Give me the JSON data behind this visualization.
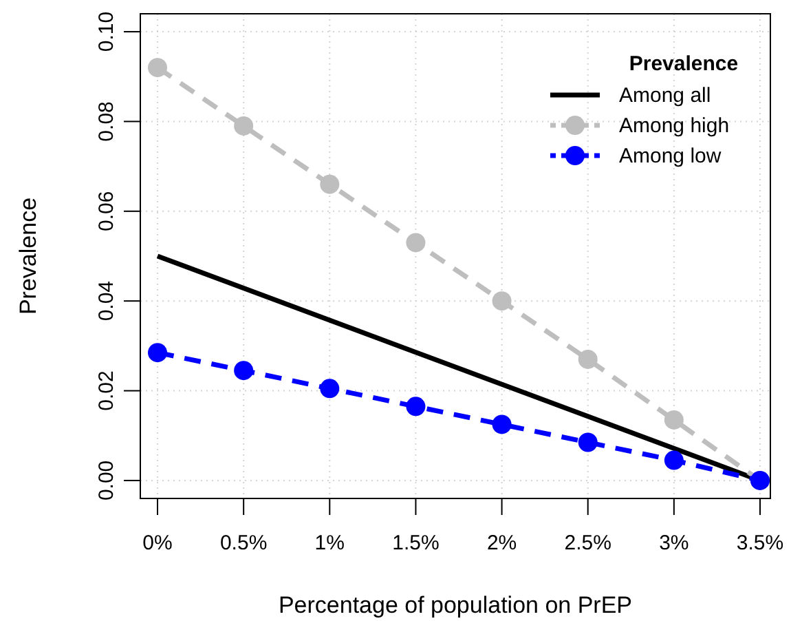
{
  "chart_data": {
    "type": "line",
    "xlabel": "Percentage of population on PrEP",
    "ylabel": "Prevalence",
    "legend_title": "Prevalence",
    "legend": "top right",
    "grid": true,
    "x": [
      0,
      0.5,
      1,
      1.5,
      2,
      2.5,
      3,
      3.5
    ],
    "xlim": [
      -0.1,
      3.56
    ],
    "xticks": [
      {
        "value": 0,
        "label": "0%"
      },
      {
        "value": 0.5,
        "label": "0.5%"
      },
      {
        "value": 1,
        "label": "1%"
      },
      {
        "value": 1.5,
        "label": "1.5%"
      },
      {
        "value": 2,
        "label": "2%"
      },
      {
        "value": 2.5,
        "label": "2.5%"
      },
      {
        "value": 3,
        "label": "3%"
      },
      {
        "value": 3.5,
        "label": "3.5%"
      }
    ],
    "ylim": [
      -0.004,
      0.104
    ],
    "yticks": [
      {
        "value": 0,
        "label": "0.00"
      },
      {
        "value": 0.02,
        "label": "0.02"
      },
      {
        "value": 0.04,
        "label": "0.04"
      },
      {
        "value": 0.06,
        "label": "0.06"
      },
      {
        "value": 0.08,
        "label": "0.08"
      },
      {
        "value": 0.1,
        "label": "0.10"
      }
    ],
    "series": [
      {
        "name": "Among all",
        "color": "#000000",
        "marker": "none",
        "line_style": "solid",
        "x": [
          0,
          3.5
        ],
        "values": [
          0.05,
          0
        ]
      },
      {
        "name": "Among high",
        "color": "#bebebe",
        "marker": "circle",
        "line_style": "dashed",
        "values": [
          0.092,
          0.079,
          0.066,
          0.053,
          0.04,
          0.027,
          0.0135,
          0
        ]
      },
      {
        "name": "Among low",
        "color": "#0000ff",
        "marker": "circle",
        "line_style": "dashed",
        "values": [
          0.0285,
          0.0245,
          0.0205,
          0.0165,
          0.0125,
          0.0085,
          0.0045,
          0
        ]
      }
    ]
  }
}
